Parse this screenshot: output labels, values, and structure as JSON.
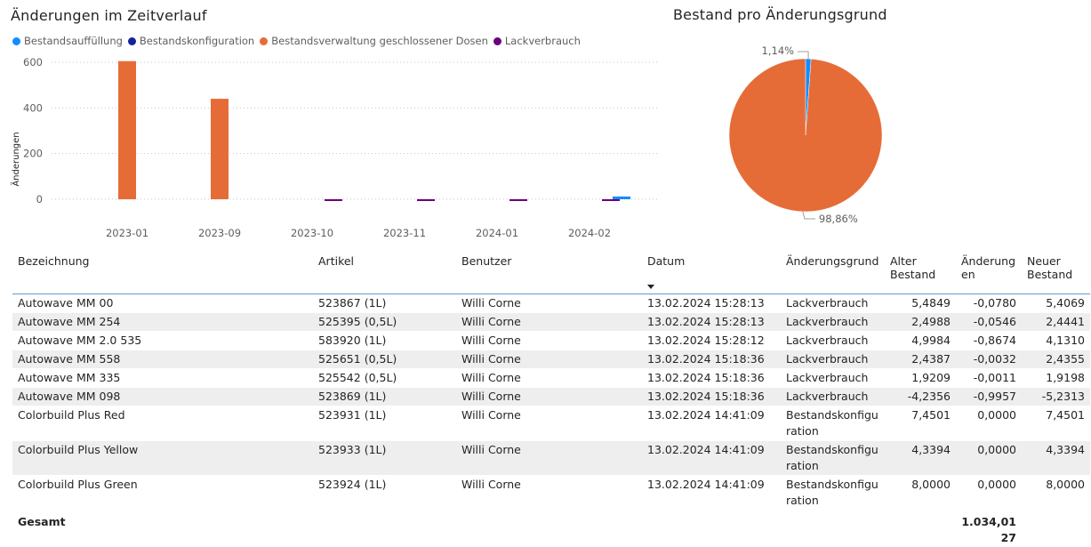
{
  "left_chart": {
    "title": "Änderungen im Zeitverlauf",
    "legend": [
      {
        "label": "Bestandsauffüllung",
        "color": "#118dff"
      },
      {
        "label": "Bestandskonfiguration",
        "color": "#12239e"
      },
      {
        "label": "Bestandsverwaltung geschlossener Dosen",
        "color": "#e66c37"
      },
      {
        "label": "Lackverbrauch",
        "color": "#6b007b"
      }
    ]
  },
  "right_chart": {
    "title": "Bestand pro Änderungsgrund"
  },
  "chart_data": [
    {
      "type": "bar",
      "title": "Änderungen im Zeitverlauf",
      "ylabel": "Änderungen",
      "xlabel": "",
      "ylim": [
        -30,
        620
      ],
      "yticks": [
        0,
        200,
        400,
        600
      ],
      "categories": [
        "2023-01",
        "2023-09",
        "2023-10",
        "2023-11",
        "2024-01",
        "2024-02"
      ],
      "series": [
        {
          "name": "Bestandsauffüllung",
          "color": "#118dff",
          "values": [
            0,
            0,
            0,
            0,
            0,
            12
          ]
        },
        {
          "name": "Bestandskonfiguration",
          "color": "#12239e",
          "values": [
            0,
            0,
            0,
            0,
            0,
            0
          ]
        },
        {
          "name": "Bestandsverwaltung geschlossener Dosen",
          "color": "#e66c37",
          "values": [
            605,
            440,
            0,
            0,
            0,
            0
          ]
        },
        {
          "name": "Lackverbrauch",
          "color": "#6b007b",
          "values": [
            0,
            0,
            -3,
            -2,
            -3,
            -2
          ]
        }
      ],
      "grid": true,
      "legend_position": "top-left"
    },
    {
      "type": "pie",
      "title": "Bestand pro Änderungsgrund",
      "slices": [
        {
          "label": "1,14%",
          "value": 1.14,
          "color": "#118dff"
        },
        {
          "label": "98,86%",
          "value": 98.86,
          "color": "#e66c37"
        }
      ]
    }
  ],
  "table": {
    "headers": [
      "Bezeichnung",
      "Artikel",
      "Benutzer",
      "Datum",
      "Änderungsgrund",
      "Alter Bestand",
      "Änderungen",
      "Neuer Bestand"
    ],
    "header_display": {
      "alter_1": "Alter",
      "alter_2": "Bestand",
      "aend_1": "Änderung",
      "aend_2": "en",
      "neuer_1": "Neuer",
      "neuer_2": "Bestand"
    },
    "rows": [
      [
        "Autowave MM 00",
        "523867 (1L)",
        "Willi Corne",
        "13.02.2024 15:28:13",
        "Lackverbrauch",
        "5,4849",
        "-0,0780",
        "5,4069"
      ],
      [
        "Autowave MM 254",
        "525395 (0,5L)",
        "Willi Corne",
        "13.02.2024 15:28:13",
        "Lackverbrauch",
        "2,4988",
        "-0,0546",
        "2,4441"
      ],
      [
        "Autowave MM 2.0 535",
        "583920 (1L)",
        "Willi Corne",
        "13.02.2024 15:28:12",
        "Lackverbrauch",
        "4,9984",
        "-0,8674",
        "4,1310"
      ],
      [
        "Autowave MM 558",
        "525651 (0,5L)",
        "Willi Corne",
        "13.02.2024 15:18:36",
        "Lackverbrauch",
        "2,4387",
        "-0,0032",
        "2,4355"
      ],
      [
        "Autowave MM 335",
        "525542 (0,5L)",
        "Willi Corne",
        "13.02.2024 15:18:36",
        "Lackverbrauch",
        "1,9209",
        "-0,0011",
        "1,9198"
      ],
      [
        "Autowave MM 098",
        "523869 (1L)",
        "Willi Corne",
        "13.02.2024 15:18:36",
        "Lackverbrauch",
        "-4,2356",
        "-0,9957",
        "-5,2313"
      ],
      [
        "Colorbuild Plus Red",
        "523931 (1L)",
        "Willi Corne",
        "13.02.2024 14:41:09",
        "Bestandskonfiguration",
        "7,4501",
        "0,0000",
        "7,4501"
      ],
      [
        "Colorbuild Plus Yellow",
        "523933 (1L)",
        "Willi Corne",
        "13.02.2024 14:41:09",
        "Bestandskonfiguration",
        "4,3394",
        "0,0000",
        "4,3394"
      ],
      [
        "Colorbuild Plus Green",
        "523924 (1L)",
        "Willi Corne",
        "13.02.2024 14:41:09",
        "Bestandskonfiguration",
        "8,0000",
        "0,0000",
        "8,0000"
      ]
    ],
    "total": {
      "label": "Gesamt",
      "aenderungen": "1.034,0127"
    }
  }
}
